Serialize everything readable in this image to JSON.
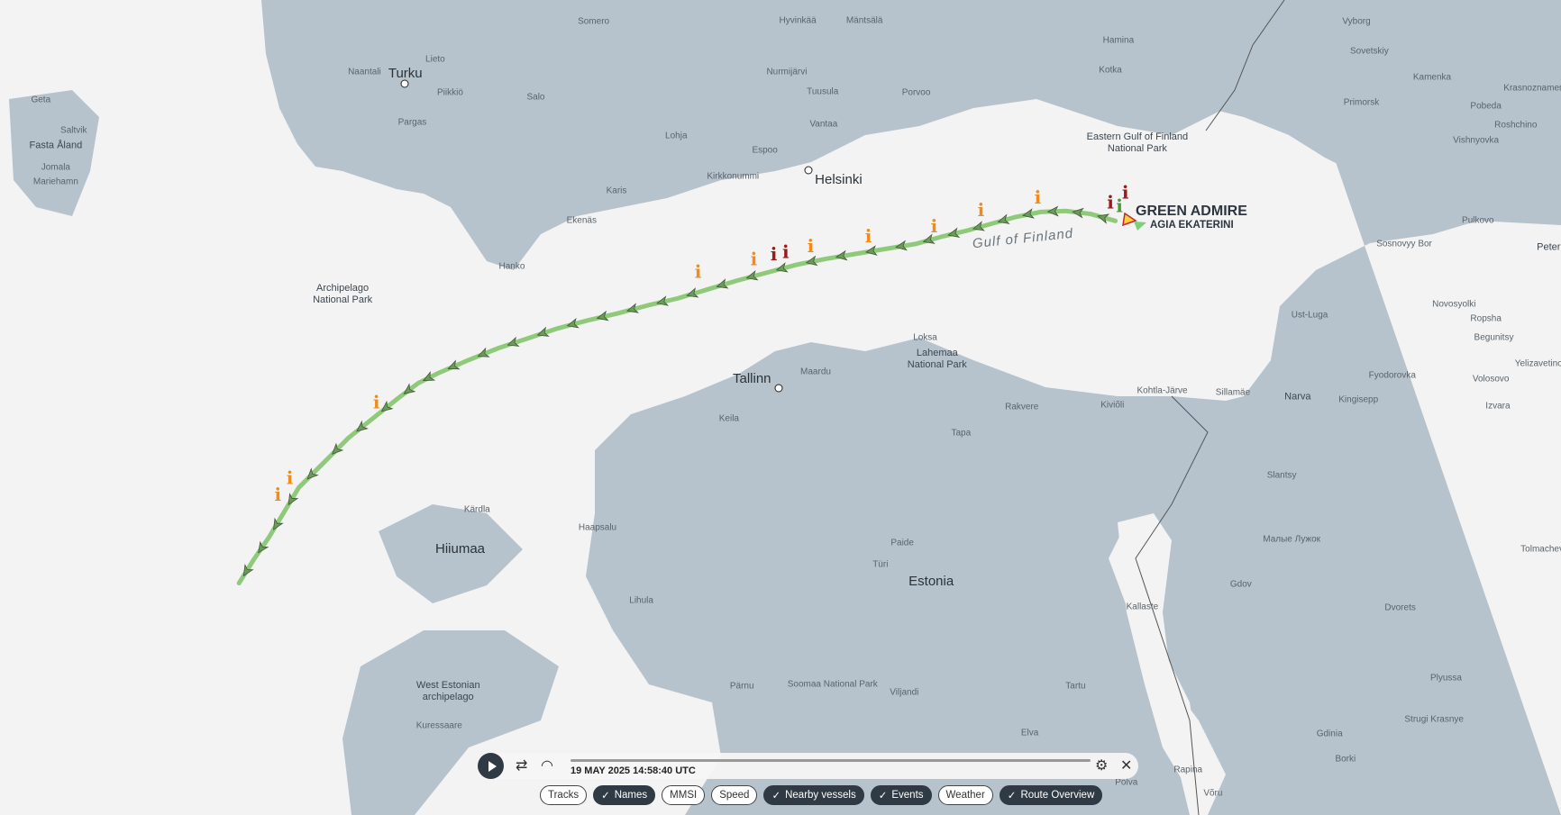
{
  "map": {
    "colors": {
      "sea": "#f3f3f3",
      "land": "#b7c3cc",
      "track": "#8fc97a",
      "event_orange": "#f08c1e",
      "event_red": "#9b1a1a"
    },
    "places": [
      {
        "name": "Turku",
        "kind": "city"
      },
      {
        "name": "Helsinki",
        "kind": "city"
      },
      {
        "name": "Tallinn",
        "kind": "city"
      },
      {
        "name": "Estonia",
        "kind": "big"
      },
      {
        "name": "Hiiumaa",
        "kind": "big"
      },
      {
        "name": "Gulf of Finland",
        "kind": "sea"
      },
      {
        "name": "Fasta Åland",
        "kind": "town"
      },
      {
        "name": "Mariehamn",
        "kind": "small"
      },
      {
        "name": "Saltvik",
        "kind": "small"
      },
      {
        "name": "Geta",
        "kind": "small"
      },
      {
        "name": "Jomala",
        "kind": "small"
      },
      {
        "name": "Naantali",
        "kind": "small"
      },
      {
        "name": "Lieto",
        "kind": "small"
      },
      {
        "name": "Piikkiö",
        "kind": "small"
      },
      {
        "name": "Pargas",
        "kind": "small"
      },
      {
        "name": "Salo",
        "kind": "small"
      },
      {
        "name": "Somero",
        "kind": "small"
      },
      {
        "name": "Hyvinkää",
        "kind": "small"
      },
      {
        "name": "Mäntsälä",
        "kind": "small"
      },
      {
        "name": "Nurmijärvi",
        "kind": "small"
      },
      {
        "name": "Tuusula",
        "kind": "small"
      },
      {
        "name": "Vantaa",
        "kind": "small"
      },
      {
        "name": "Espoo",
        "kind": "small"
      },
      {
        "name": "Porvoo",
        "kind": "small"
      },
      {
        "name": "Kotka",
        "kind": "small"
      },
      {
        "name": "Hamina",
        "kind": "small"
      },
      {
        "name": "Lohja",
        "kind": "small"
      },
      {
        "name": "Kirkkonummi",
        "kind": "small"
      },
      {
        "name": "Karis",
        "kind": "small"
      },
      {
        "name": "Ekenäs",
        "kind": "small"
      },
      {
        "name": "Hanko",
        "kind": "small"
      },
      {
        "name": "Archipelago\nNational Park",
        "kind": "town"
      },
      {
        "name": "Eastern Gulf of Finland\nNational Park",
        "kind": "town"
      },
      {
        "name": "Vyborg",
        "kind": "small"
      },
      {
        "name": "Sovetskiy",
        "kind": "small"
      },
      {
        "name": "Kamenka",
        "kind": "small"
      },
      {
        "name": "Primorsk",
        "kind": "small"
      },
      {
        "name": "Pobeda",
        "kind": "small"
      },
      {
        "name": "Krasnoznamenka",
        "kind": "small"
      },
      {
        "name": "Roshchino",
        "kind": "small"
      },
      {
        "name": "Vishnyovka",
        "kind": "small"
      },
      {
        "name": "Pulkovo",
        "kind": "small"
      },
      {
        "name": "Sosnovyy Bor",
        "kind": "small"
      },
      {
        "name": "Peter",
        "kind": "town"
      },
      {
        "name": "Ust-Luga",
        "kind": "small"
      },
      {
        "name": "Novosyolki",
        "kind": "small"
      },
      {
        "name": "Ropsha",
        "kind": "small"
      },
      {
        "name": "Begunitsy",
        "kind": "small"
      },
      {
        "name": "Fyodorovka",
        "kind": "small"
      },
      {
        "name": "Volosovo",
        "kind": "small"
      },
      {
        "name": "Yelizavetino",
        "kind": "small"
      },
      {
        "name": "Izvara",
        "kind": "small"
      },
      {
        "name": "Narva",
        "kind": "town"
      },
      {
        "name": "Kingisepp",
        "kind": "small"
      },
      {
        "name": "Sillamäe",
        "kind": "small"
      },
      {
        "name": "Kohtla-Järve",
        "kind": "small"
      },
      {
        "name": "Kiviõli",
        "kind": "small"
      },
      {
        "name": "Rakvere",
        "kind": "small"
      },
      {
        "name": "Tapa",
        "kind": "small"
      },
      {
        "name": "Loksa",
        "kind": "small"
      },
      {
        "name": "Lahemaa\nNational Park",
        "kind": "town"
      },
      {
        "name": "Maardu",
        "kind": "small"
      },
      {
        "name": "Keila",
        "kind": "small"
      },
      {
        "name": "Kärdla",
        "kind": "small"
      },
      {
        "name": "Haapsalu",
        "kind": "small"
      },
      {
        "name": "Lihula",
        "kind": "small"
      },
      {
        "name": "Paide",
        "kind": "small"
      },
      {
        "name": "Türi",
        "kind": "small"
      },
      {
        "name": "Pärnu",
        "kind": "small"
      },
      {
        "name": "Soomaa National Park",
        "kind": "small"
      },
      {
        "name": "Viljandi",
        "kind": "small"
      },
      {
        "name": "Tartu",
        "kind": "small"
      },
      {
        "name": "Elva",
        "kind": "small"
      },
      {
        "name": "Põlva",
        "kind": "small"
      },
      {
        "name": "Kallaste",
        "kind": "small"
      },
      {
        "name": "Gdov",
        "kind": "small"
      },
      {
        "name": "Slantsy",
        "kind": "small"
      },
      {
        "name": "Малые Лужок",
        "kind": "small"
      },
      {
        "name": "Dvorets",
        "kind": "small"
      },
      {
        "name": "Plyussa",
        "kind": "small"
      },
      {
        "name": "Strugi Krasnye",
        "kind": "small"
      },
      {
        "name": "Gdinia",
        "kind": "small"
      },
      {
        "name": "Borki",
        "kind": "small"
      },
      {
        "name": "Rapina",
        "kind": "small"
      },
      {
        "name": "Võru",
        "kind": "small"
      },
      {
        "name": "West Estonian\narchipelago",
        "kind": "town"
      },
      {
        "name": "Kuressaare",
        "kind": "small"
      },
      {
        "name": "Tolmachevo",
        "kind": "small"
      }
    ],
    "vessels": {
      "primary": "GREEN ADMIRE",
      "secondary": "AGIA EKATERINI"
    }
  },
  "playback": {
    "timestamp": "19 MAY 2025 14:58:40 UTC",
    "progress": 0.0,
    "icons": {
      "play": "play-icon",
      "swap": "swap-icon",
      "speed": "speedometer-icon",
      "settings": "gear-icon",
      "close": "close-icon"
    }
  },
  "toggles": [
    {
      "label": "Tracks",
      "checked": false
    },
    {
      "label": "Names",
      "checked": true
    },
    {
      "label": "MMSI",
      "checked": false
    },
    {
      "label": "Speed",
      "checked": false
    },
    {
      "label": "Nearby vessels",
      "checked": true
    },
    {
      "label": "Events",
      "checked": true
    },
    {
      "label": "Weather",
      "checked": false
    },
    {
      "label": "Route Overview",
      "checked": true
    }
  ],
  "check_glyph": "✓",
  "event_glyph": "i"
}
